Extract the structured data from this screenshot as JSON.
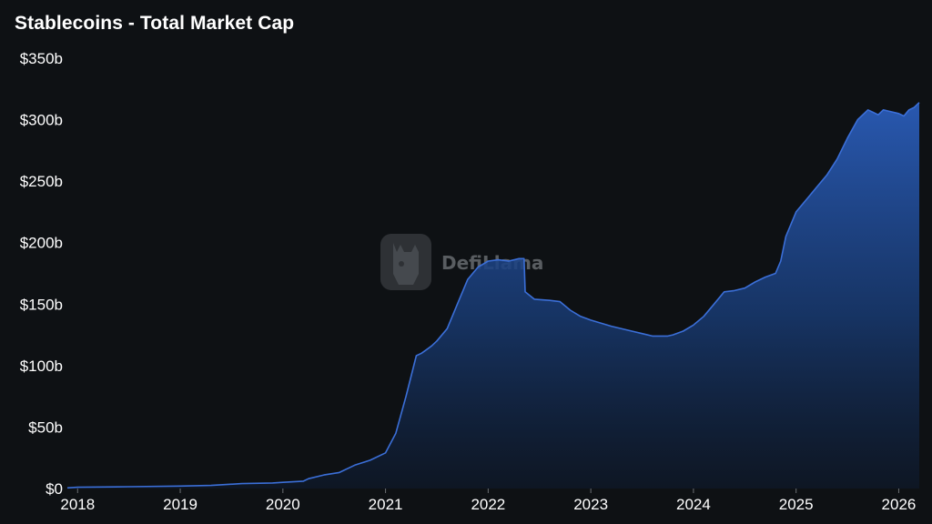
{
  "chart_data": {
    "type": "area",
    "title": "Stablecoins - Total Market Cap",
    "xlabel": "",
    "ylabel": "",
    "y_tick_labels": [
      "$0",
      "$50b",
      "$100b",
      "$150b",
      "$200b",
      "$250b",
      "$300b",
      "$350b"
    ],
    "y_tick_values": [
      0,
      50,
      100,
      150,
      200,
      250,
      300,
      350
    ],
    "x_tick_labels": [
      "2018",
      "2019",
      "2020",
      "2021",
      "2022",
      "2023",
      "2024",
      "2025",
      "2026"
    ],
    "x_tick_values": [
      2018,
      2019,
      2020,
      2021,
      2022,
      2023,
      2024,
      2025,
      2026
    ],
    "xlim": [
      2017.9,
      2026.2
    ],
    "ylim": [
      0,
      350
    ],
    "grid": false,
    "legend": "none",
    "unit": "USD billions",
    "series": [
      {
        "color": "#3b6fd8",
        "x": [
          2017.9,
          2018.0,
          2018.5,
          2019.0,
          2019.3,
          2019.6,
          2019.9,
          2020.0,
          2020.2,
          2020.25,
          2020.4,
          2020.55,
          2020.7,
          2020.85,
          2021.0,
          2021.1,
          2021.2,
          2021.3,
          2021.35,
          2021.4,
          2021.45,
          2021.5,
          2021.6,
          2021.7,
          2021.8,
          2021.9,
          2022.0,
          2022.1,
          2022.2,
          2022.3,
          2022.35,
          2022.36,
          2022.45,
          2022.6,
          2022.7,
          2022.8,
          2022.9,
          2023.0,
          2023.2,
          2023.4,
          2023.5,
          2023.6,
          2023.7,
          2023.75,
          2023.8,
          2023.9,
          2024.0,
          2024.1,
          2024.2,
          2024.3,
          2024.4,
          2024.5,
          2024.6,
          2024.7,
          2024.8,
          2024.85,
          2024.9,
          2025.0,
          2025.1,
          2025.2,
          2025.3,
          2025.4,
          2025.5,
          2025.6,
          2025.7,
          2025.75,
          2025.8,
          2025.85,
          2025.9,
          2026.0,
          2026.05,
          2026.1,
          2026.15,
          2026.2
        ],
        "values": [
          0.5,
          1,
          1.5,
          2,
          2.5,
          4,
          4.5,
          5,
          6,
          8,
          11,
          13,
          19,
          23,
          29,
          45,
          75,
          108,
          110,
          113,
          116,
          120,
          130,
          150,
          170,
          180,
          185,
          186,
          185,
          187,
          187,
          160,
          154,
          153,
          152,
          145,
          140,
          137,
          132,
          128,
          126,
          124,
          124,
          124,
          125,
          128,
          133,
          140,
          150,
          160,
          161,
          163,
          168,
          172,
          175,
          185,
          205,
          225,
          235,
          245,
          255,
          268,
          285,
          300,
          308,
          306,
          304,
          308,
          307,
          305,
          303,
          308,
          310,
          314
        ]
      }
    ]
  },
  "watermark": {
    "text": "DefiLlama",
    "logo": "llama-logo-icon"
  }
}
